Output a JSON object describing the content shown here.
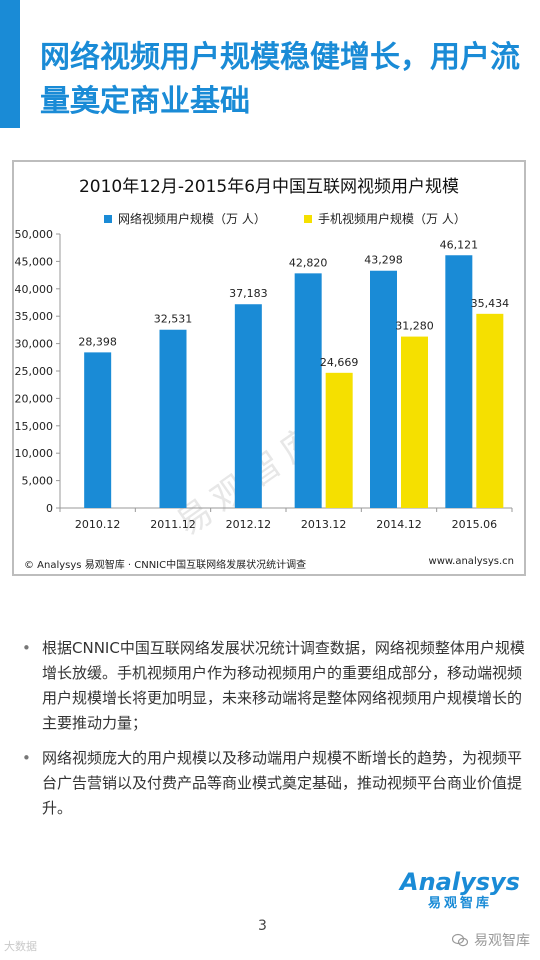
{
  "page": {
    "title": "网络视频用户规模稳健增长，用户流量奠定商业基础",
    "accent_color": "#1a8bd6",
    "page_number": "3"
  },
  "chart_data": {
    "type": "bar",
    "title": "2010年12月-2015年6月中国互联网视频用户规模",
    "categories": [
      "2010.12",
      "2011.12",
      "2012.12",
      "2013.12",
      "2014.12",
      "2015.06"
    ],
    "series": [
      {
        "name": "网络视频用户规模（万 人）",
        "color": "#1a8bd6",
        "values": [
          28398,
          32531,
          37183,
          42820,
          43298,
          46121
        ]
      },
      {
        "name": "手机视频用户规模（万 人）",
        "color": "#f5e000",
        "values": [
          null,
          null,
          null,
          24669,
          31280,
          35434
        ]
      }
    ],
    "value_labels": [
      [
        "28,398",
        "32,531",
        "37,183",
        "42,820",
        "43,298",
        "46,121"
      ],
      [
        "",
        "",
        "",
        "24,669",
        "31,280",
        "35,434"
      ]
    ],
    "yticks": [
      "0",
      "5,000",
      "10,000",
      "15,000",
      "20,000",
      "25,000",
      "30,000",
      "35,000",
      "40,000",
      "45,000",
      "50,000"
    ],
    "ylim": [
      0,
      50000
    ],
    "grid": false,
    "legend_position": "top",
    "source": "© Analysys 易观智库 · CNNIC中国互联网络发展状况统计调查",
    "site": "www.analysys.cn",
    "watermark": "易观智库"
  },
  "bullets": [
    "根据CNNIC中国互联网络发展状况统计调查数据，网络视频整体用户规模增长放缓。手机视频用户作为移动视频用户的重要组成部分，移动端视频用户规模增长将更加明显，未来移动端将是整体网络视频用户规模增长的主要推动力量；",
    "网络视频庞大的用户规模以及移动端用户规模不断增长的趋势，为视频平台广告营销以及付费产品等商业模式奠定基础，推动视频平台商业价值提升。"
  ],
  "bullet_mark": "•",
  "logo": {
    "en": "Analysys",
    "cn": "易观智库"
  },
  "footer": {
    "left_watermark": "大数据",
    "right_watermark": "易观智库"
  }
}
